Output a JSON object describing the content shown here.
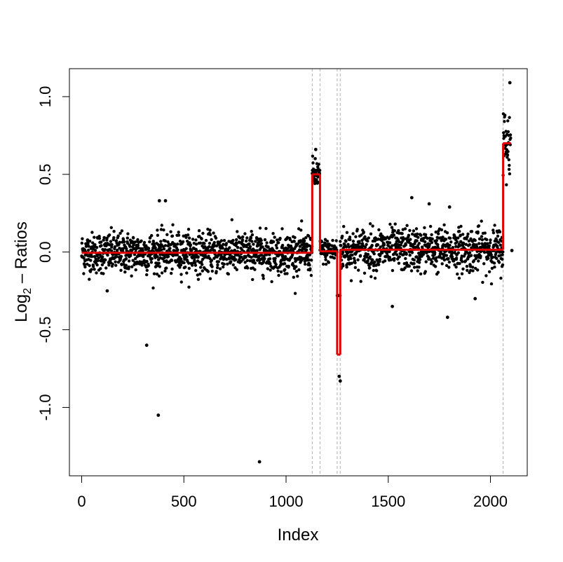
{
  "chart_data": {
    "type": "scatter",
    "title": "",
    "xlabel": "Index",
    "ylabel_main": "Log",
    "ylabel_sub": "2",
    "ylabel_rest": " – Ratios",
    "xlim": [
      -60,
      2180
    ],
    "ylim": [
      -1.44,
      1.18
    ],
    "x_ticks": [
      0,
      500,
      1000,
      1500,
      2000
    ],
    "x_tick_labels": [
      "0",
      "500",
      "1000",
      "1500",
      "2000"
    ],
    "y_ticks": [
      -1.0,
      -0.5,
      0.0,
      0.5,
      1.0
    ],
    "y_tick_labels": [
      "-1.0",
      "-0.5",
      "0.0",
      "0.5",
      "1.0"
    ],
    "grid": false,
    "legend": "none",
    "point_color": "#000000",
    "segment_color": "#e00000",
    "breakpoint_color": "#b0b0b0",
    "breakpoints": [
      1128,
      1166,
      1250,
      1265,
      2062
    ],
    "segments": [
      {
        "x_start": 0,
        "x_end": 1128,
        "mean": -0.005
      },
      {
        "x_start": 1128,
        "x_end": 1166,
        "mean": 0.5
      },
      {
        "x_start": 1166,
        "x_end": 1250,
        "mean": 0.005
      },
      {
        "x_start": 1250,
        "x_end": 1265,
        "mean": -0.66
      },
      {
        "x_start": 1265,
        "x_end": 2062,
        "mean": 0.015
      },
      {
        "x_start": 2062,
        "x_end": 2100,
        "mean": 0.7
      }
    ],
    "noise_sd": [
      0.065,
      0.05,
      0.04,
      0.08,
      0.07,
      0.12
    ],
    "n_points": 2100,
    "outliers": [
      {
        "x": 318,
        "y": -0.6
      },
      {
        "x": 375,
        "y": -1.05
      },
      {
        "x": 870,
        "y": -1.35
      },
      {
        "x": 125,
        "y": -0.25
      },
      {
        "x": 1520,
        "y": -0.35
      },
      {
        "x": 1790,
        "y": -0.42
      },
      {
        "x": 1925,
        "y": -0.3
      },
      {
        "x": 2095,
        "y": 1.09
      },
      {
        "x": 2105,
        "y": 0.01
      },
      {
        "x": 1265,
        "y": -0.83
      },
      {
        "x": 1260,
        "y": -0.8
      },
      {
        "x": 380,
        "y": 0.33
      },
      {
        "x": 410,
        "y": 0.33
      },
      {
        "x": 1615,
        "y": 0.35
      },
      {
        "x": 1700,
        "y": 0.31
      },
      {
        "x": 1145,
        "y": 0.66
      },
      {
        "x": 1800,
        "y": 0.29
      }
    ]
  }
}
